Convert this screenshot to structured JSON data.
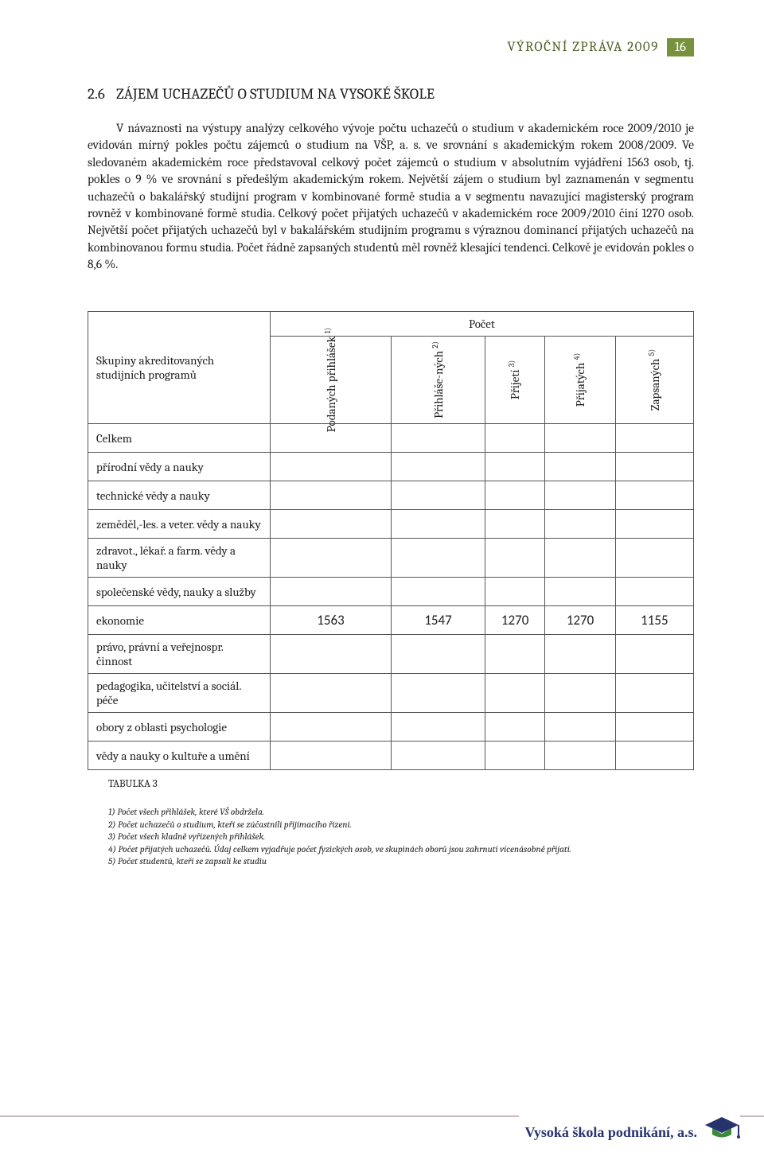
{
  "colors": {
    "headerText": "#4f6228",
    "pageBoxBg": "#76923c",
    "pageBoxFg": "#ffffff",
    "bodyText": "#222222",
    "tableBorder": "#555555",
    "footerLine": "#c9babf",
    "footerLogoText": "#27336f",
    "capBlue": "#27336f",
    "capGreen": "#3a8a3a"
  },
  "runningHead": {
    "title": "VÝROČNÍ  ZPRÁVA  2009",
    "pageNumber": "16"
  },
  "section": {
    "number": "2.6",
    "title": "ZÁJEM UCHAZEČŮ O STUDIUM NA VYSOKÉ ŠKOLE"
  },
  "paragraph": "V návaznosti na výstupy analýzy celkového vývoje počtu uchazečů o studium v akademickém roce 2009/2010 je evidován mírný pokles počtu zájemců o studium na VŠP, a. s. ve srovnání s akademickým rokem 2008/2009. Ve sledovaném akademickém roce představoval celkový počet zájemců o studium v absolutním vyjádření 1563 osob, tj. pokles o 9 % ve srovnání s předešlým akademickým rokem. Největší zájem o studium byl zaznamenán v segmentu uchazečů o bakalářský studijní program v kombinované formě studia a v segmentu navazující magisterský program rovněž v kombinované formě studia. Celkový počet přijatých uchazečů v akademickém roce 2009/2010 činí 1270 osob. Největší počet přijatých uchazečů byl v bakalářském studijním programu s výraznou dominancí přijatých uchazečů na kombinovanou formu studia. Počet řádně zapsaných studentů měl rovněž klesající tendenci. Celkově je evidován pokles o 8,6 %.",
  "table": {
    "groupsHeader": "Skupiny akreditovaných studijních programů",
    "countHeader": "Počet",
    "columns": [
      {
        "label": "Podaných přihlášek",
        "sup": "1)"
      },
      {
        "label": "Přihláše-ných",
        "sup": "2)"
      },
      {
        "label": "Přijetí",
        "sup": "3)"
      },
      {
        "label": "Přijatých",
        "sup": "4)"
      },
      {
        "label": "Zapsaných",
        "sup": "5)"
      }
    ],
    "rows": [
      {
        "label": "Celkem",
        "values": [
          "",
          "",
          "",
          "",
          ""
        ]
      },
      {
        "label": "přírodní vědy a nauky",
        "values": [
          "",
          "",
          "",
          "",
          ""
        ]
      },
      {
        "label": "technické vědy a nauky",
        "values": [
          "",
          "",
          "",
          "",
          ""
        ]
      },
      {
        "label": "zeměděl,-les. a veter. vědy a nauky",
        "values": [
          "",
          "",
          "",
          "",
          ""
        ]
      },
      {
        "label": "zdravot., lékař. a farm. vědy a nauky",
        "values": [
          "",
          "",
          "",
          "",
          ""
        ]
      },
      {
        "label": "společenské vědy, nauky a služby",
        "values": [
          "",
          "",
          "",
          "",
          ""
        ]
      },
      {
        "label": "ekonomie",
        "values": [
          "1563",
          "1547",
          "1270",
          "1270",
          "1155"
        ]
      },
      {
        "label": "právo, právní a veřejnospr. činnost",
        "values": [
          "",
          "",
          "",
          "",
          ""
        ]
      },
      {
        "label": "pedagogika, učitelství a sociál. péče",
        "values": [
          "",
          "",
          "",
          "",
          ""
        ]
      },
      {
        "label": "obory z oblasti psychologie",
        "values": [
          "",
          "",
          "",
          "",
          ""
        ]
      },
      {
        "label": "vědy a nauky o kultuře a umění",
        "values": [
          "",
          "",
          "",
          "",
          ""
        ]
      }
    ],
    "caption": "TABULKA 3"
  },
  "footnotes": [
    "1) Počet všech přihlášek, které VŠ obdržela.",
    "2) Počet uchazečů o studium, kteří se zúčastnili přijímacího řízení.",
    "3) Počet všech kladně vyřízených přihlášek.",
    "4) Počet přijatých uchazečů. Údaj celkem vyjadřuje počet fyzických osob, ve skupinách oborů jsou zahrnuti vícenásobně přijatí.",
    "5) Počet studentů, kteří se zapsali ke studiu"
  ],
  "footer": {
    "brand": "Vysoká škola podnikání, a.s."
  }
}
